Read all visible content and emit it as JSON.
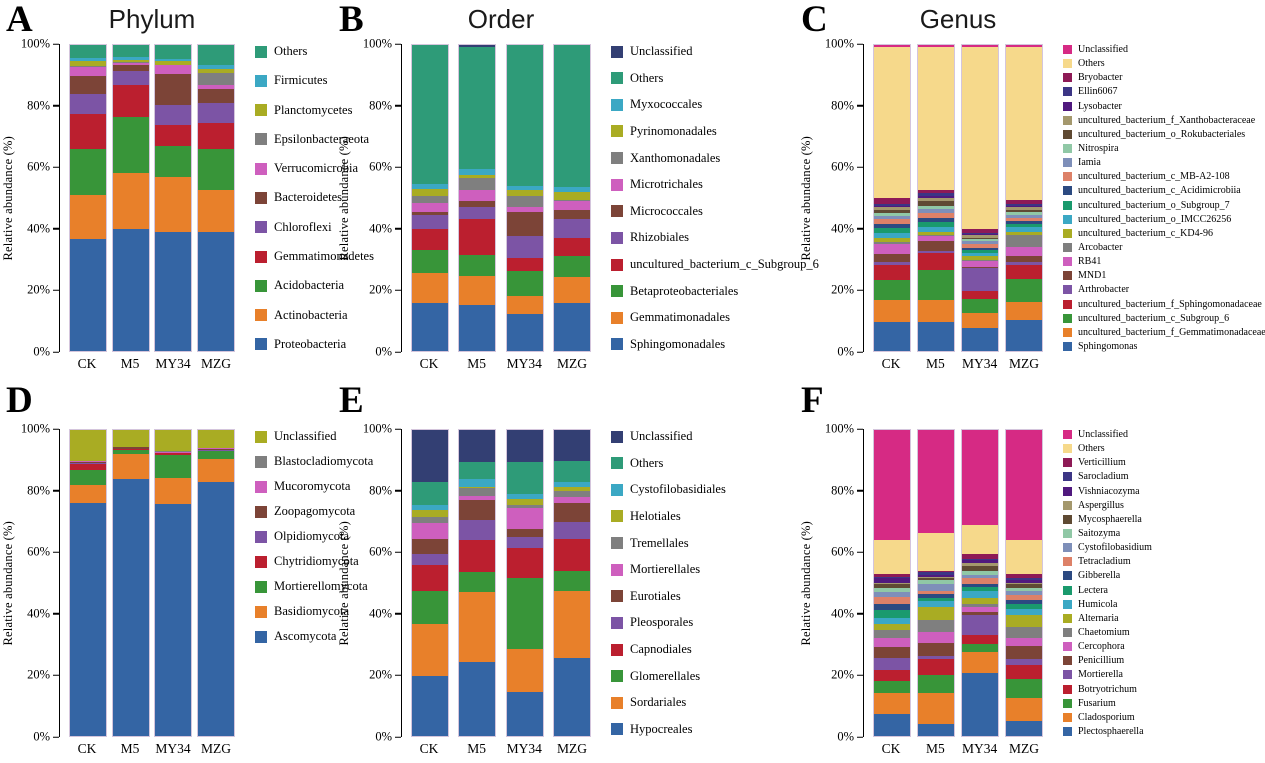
{
  "figure": {
    "background": "#ffffff",
    "ylabel": "Relative abundance (%)",
    "yticks": [
      "0%",
      "20%",
      "40%",
      "60%",
      "80%",
      "100%"
    ],
    "ytick_values": [
      0,
      20,
      40,
      60,
      80,
      100
    ],
    "samples": [
      "CK",
      "M5",
      "MY34",
      "MZG"
    ],
    "notes": "Six stacked-bar panels A-F; series listed legend top-to-bottom; bars stack with last series at bottom; values are relative abundance percent per sample [CK, M5, MY34, MZG]"
  },
  "chart_data": [
    {
      "type": "bar",
      "stacked": true,
      "panel_label": "A",
      "title": "Phylum",
      "xlabel": "",
      "ylabel": "Relative abundance (%)",
      "ylim": [
        0,
        100
      ],
      "grid": false,
      "legend_position": "right",
      "categories": [
        "CK",
        "M5",
        "MY34",
        "MZG"
      ],
      "series": [
        {
          "name": "Others",
          "color": "#2E9B78",
          "values": [
            4.4,
            4.0,
            4.5,
            6.5
          ]
        },
        {
          "name": "Firmicutes",
          "color": "#3BA8C4",
          "values": [
            0.9,
            0.9,
            0.7,
            1.5
          ]
        },
        {
          "name": "Planctomycetes",
          "color": "#A9AC23",
          "values": [
            1.6,
            0.8,
            1.2,
            1.0
          ]
        },
        {
          "name": "Epsilonbacteraeota",
          "color": "#7F7F7F",
          "values": [
            0.4,
            0.3,
            0.3,
            4.0
          ]
        },
        {
          "name": "Verrucomicrobia",
          "color": "#CE5FBE",
          "values": [
            2.7,
            0.7,
            2.8,
            1.5
          ]
        },
        {
          "name": "Bacteroidetes",
          "color": "#7C4437",
          "values": [
            6.0,
            1.8,
            10.0,
            4.5
          ]
        },
        {
          "name": "Chloroflexi",
          "color": "#7C54A5",
          "values": [
            6.5,
            4.5,
            6.5,
            6.5
          ]
        },
        {
          "name": "Gemmatimonadetes",
          "color": "#BB1F2F",
          "values": [
            11.5,
            10.5,
            7.0,
            8.5
          ]
        },
        {
          "name": "Acidobacteria",
          "color": "#389539",
          "values": [
            15.0,
            18.5,
            10.0,
            13.5
          ]
        },
        {
          "name": "Actinobacteria",
          "color": "#E8802A",
          "values": [
            14.5,
            18.0,
            18.0,
            13.5
          ]
        },
        {
          "name": "Proteobacteria",
          "color": "#3465A4",
          "values": [
            36.5,
            40.0,
            39.0,
            39.0
          ]
        }
      ]
    },
    {
      "type": "bar",
      "stacked": true,
      "panel_label": "B",
      "title": "Order",
      "xlabel": "",
      "ylabel": "Relative abundance (%)",
      "ylim": [
        0,
        100
      ],
      "grid": false,
      "legend_position": "right",
      "categories": [
        "CK",
        "M5",
        "MY34",
        "MZG"
      ],
      "series": [
        {
          "name": "Unclassified",
          "color": "#333F73",
          "values": [
            0.0,
            0.5,
            0.0,
            0.0
          ]
        },
        {
          "name": "Others",
          "color": "#2E9B78",
          "values": [
            45.5,
            40.0,
            46.0,
            46.5
          ]
        },
        {
          "name": "Myxococcales",
          "color": "#3BA8C4",
          "values": [
            1.5,
            2.0,
            1.5,
            1.5
          ]
        },
        {
          "name": "Pyrinomonadales",
          "color": "#A9AC23",
          "values": [
            2.5,
            1.0,
            2.0,
            2.5
          ]
        },
        {
          "name": "Xanthomonadales",
          "color": "#7F7F7F",
          "values": [
            2.0,
            4.0,
            3.5,
            0.5
          ]
        },
        {
          "name": "Microtrichales",
          "color": "#CE5FBE",
          "values": [
            3.0,
            3.5,
            1.5,
            3.0
          ]
        },
        {
          "name": "Micrococcales",
          "color": "#7C4437",
          "values": [
            1.0,
            2.0,
            8.0,
            3.0
          ]
        },
        {
          "name": "Rhizobiales",
          "color": "#7C54A5",
          "values": [
            4.5,
            4.0,
            7.0,
            6.0
          ]
        },
        {
          "name": "uncultured_bacterium_c_Subgroup_6",
          "color": "#BB1F2F",
          "values": [
            7.0,
            11.5,
            4.5,
            6.0
          ]
        },
        {
          "name": "Betaproteobacteriales",
          "color": "#389539",
          "values": [
            7.5,
            7.0,
            8.0,
            7.0
          ]
        },
        {
          "name": "Gemmatimonadales",
          "color": "#E8802A",
          "values": [
            10.0,
            9.5,
            6.0,
            8.5
          ]
        },
        {
          "name": "Sphingomonadales",
          "color": "#3465A4",
          "values": [
            15.5,
            15.0,
            12.0,
            15.5
          ]
        }
      ]
    },
    {
      "type": "bar",
      "stacked": true,
      "panel_label": "C",
      "title": "Genus",
      "xlabel": "",
      "ylabel": "Relative abundance (%)",
      "ylim": [
        0,
        100
      ],
      "grid": false,
      "legend_position": "right",
      "categories": [
        "CK",
        "M5",
        "MY34",
        "MZG"
      ],
      "series": [
        {
          "name": "Unclassified",
          "color": "#D62A84",
          "values": [
            0.5,
            0.5,
            0.5,
            0.5
          ]
        },
        {
          "name": "Others",
          "color": "#F6D98B",
          "values": [
            49.5,
            47.0,
            59.7,
            50.0
          ]
        },
        {
          "name": "Bryobacter",
          "color": "#8E1A56",
          "values": [
            2.0,
            1.0,
            1.3,
            1.5
          ]
        },
        {
          "name": "Ellin6067",
          "color": "#3C3585",
          "values": [
            0.5,
            1.0,
            0.3,
            0.5
          ]
        },
        {
          "name": "Lysobacter",
          "color": "#50197E",
          "values": [
            0.5,
            0.5,
            0.4,
            0.5
          ]
        },
        {
          "name": "uncultured_bacterium_f_Xanthobacteraceae",
          "color": "#A4986D",
          "values": [
            1.0,
            1.0,
            0.8,
            1.0
          ]
        },
        {
          "name": "uncultured_bacterium_o_Rokubacteriales",
          "color": "#5F4A33",
          "values": [
            1.0,
            1.5,
            0.5,
            0.7
          ]
        },
        {
          "name": "Nitrospira",
          "color": "#90C8A6",
          "values": [
            1.0,
            1.0,
            0.7,
            0.8
          ]
        },
        {
          "name": "Iamia",
          "color": "#7E8FB9",
          "values": [
            1.0,
            1.5,
            0.8,
            1.0
          ]
        },
        {
          "name": "uncultured_bacterium_c_MB-A2-108",
          "color": "#DD8168",
          "values": [
            1.5,
            1.5,
            1.3,
            1.0
          ]
        },
        {
          "name": "uncultured_bacterium_c_Acidimicrobiia",
          "color": "#2C4A81",
          "values": [
            1.5,
            1.5,
            0.7,
            1.0
          ]
        },
        {
          "name": "uncultured_bacterium_o_Subgroup_7",
          "color": "#1A9A6D",
          "values": [
            1.5,
            1.5,
            1.0,
            1.0
          ]
        },
        {
          "name": "uncultured_bacterium_o_IMCC26256",
          "color": "#3BA8C4",
          "values": [
            1.5,
            1.5,
            1.0,
            1.5
          ]
        },
        {
          "name": "uncultured_bacterium_c_KD4-96",
          "color": "#A9AC23",
          "values": [
            1.5,
            1.0,
            1.2,
            1.0
          ]
        },
        {
          "name": "Arcobacter",
          "color": "#7F7F7F",
          "values": [
            0.5,
            0.5,
            0.3,
            4.0
          ]
        },
        {
          "name": "RB41",
          "color": "#CE5FBE",
          "values": [
            3.5,
            1.5,
            2.0,
            3.0
          ]
        },
        {
          "name": "MND1",
          "color": "#7C4437",
          "values": [
            2.5,
            3.5,
            0.5,
            2.0
          ]
        },
        {
          "name": "Arthrobacter",
          "color": "#7C54A5",
          "values": [
            1.0,
            0.5,
            7.5,
            1.0
          ]
        },
        {
          "name": "uncultured_bacterium_f_Sphingomonadaceae",
          "color": "#BB1F2F",
          "values": [
            5.0,
            5.5,
            2.5,
            4.5
          ]
        },
        {
          "name": "uncultured_bacterium_c_Subgroup_6",
          "color": "#389539",
          "values": [
            6.5,
            10.0,
            4.5,
            7.5
          ]
        },
        {
          "name": "uncultured_bacterium_f_Gemmatimonadaceae",
          "color": "#E8802A",
          "values": [
            7.0,
            7.0,
            5.0,
            6.0
          ]
        },
        {
          "name": "Sphingomonas",
          "color": "#3465A4",
          "values": [
            9.5,
            9.5,
            7.5,
            10.0
          ]
        }
      ]
    },
    {
      "type": "bar",
      "stacked": true,
      "panel_label": "D",
      "title": "",
      "xlabel": "",
      "ylabel": "Relative abundance (%)",
      "ylim": [
        0,
        100
      ],
      "grid": false,
      "legend_position": "right",
      "categories": [
        "CK",
        "M5",
        "MY34",
        "MZG"
      ],
      "series": [
        {
          "name": "Unclassified",
          "color": "#A9AC23",
          "values": [
            10.0,
            5.4,
            7.0,
            5.9
          ]
        },
        {
          "name": "Blastocladiomycota",
          "color": "#7F7F7F",
          "values": [
            0.2,
            0.1,
            0.1,
            0.1
          ]
        },
        {
          "name": "Mucoromycota",
          "color": "#CE5FBE",
          "values": [
            0.3,
            0.2,
            0.3,
            0.2
          ]
        },
        {
          "name": "Zoopagomycota",
          "color": "#7C4437",
          "values": [
            0.3,
            0.5,
            0.1,
            0.5
          ]
        },
        {
          "name": "Olpidiomycota",
          "color": "#7C54A5",
          "values": [
            0.2,
            0.1,
            0.1,
            0.1
          ]
        },
        {
          "name": "Chytridiomycota",
          "color": "#BB1F2F",
          "values": [
            2.0,
            0.2,
            0.5,
            0.2
          ]
        },
        {
          "name": "Mortierellomycota",
          "color": "#389539",
          "values": [
            5.0,
            1.5,
            7.5,
            2.5
          ]
        },
        {
          "name": "Basidiomycota",
          "color": "#E8802A",
          "values": [
            6.0,
            8.0,
            8.5,
            7.5
          ]
        },
        {
          "name": "Ascomycota",
          "color": "#3465A4",
          "values": [
            76.0,
            84.0,
            76.0,
            83.5
          ]
        }
      ]
    },
    {
      "type": "bar",
      "stacked": true,
      "panel_label": "E",
      "title": "",
      "xlabel": "",
      "ylabel": "Relative abundance (%)",
      "ylim": [
        0,
        100
      ],
      "grid": false,
      "legend_position": "right",
      "categories": [
        "CK",
        "M5",
        "MY34",
        "MZG"
      ],
      "series": [
        {
          "name": "Unclassified",
          "color": "#333F73",
          "values": [
            17.0,
            10.5,
            10.5,
            10.0
          ]
        },
        {
          "name": "Others",
          "color": "#2E9B78",
          "values": [
            7.5,
            5.5,
            10.5,
            7.0
          ]
        },
        {
          "name": "Cystofilobasidiales",
          "color": "#3BA8C4",
          "values": [
            1.5,
            2.5,
            1.5,
            1.5
          ]
        },
        {
          "name": "Helotiales",
          "color": "#A9AC23",
          "values": [
            2.5,
            0.5,
            2.0,
            1.5
          ]
        },
        {
          "name": "Tremellales",
          "color": "#7F7F7F",
          "values": [
            2.0,
            2.5,
            1.0,
            2.0
          ]
        },
        {
          "name": "Mortierellales",
          "color": "#CE5FBE",
          "values": [
            5.0,
            1.5,
            7.0,
            2.0
          ]
        },
        {
          "name": "Eurotiales",
          "color": "#7C4437",
          "values": [
            5.0,
            6.5,
            2.5,
            6.0
          ]
        },
        {
          "name": "Pleosporales",
          "color": "#7C54A5",
          "values": [
            3.5,
            6.5,
            3.5,
            5.5
          ]
        },
        {
          "name": "Capnodiales",
          "color": "#BB1F2F",
          "values": [
            8.5,
            10.5,
            10.0,
            10.5
          ]
        },
        {
          "name": "Glomerellales",
          "color": "#389539",
          "values": [
            11.0,
            6.5,
            23.0,
            6.5
          ]
        },
        {
          "name": "Sordariales",
          "color": "#E8802A",
          "values": [
            17.0,
            23.0,
            14.0,
            22.0
          ]
        },
        {
          "name": "Hypocreales",
          "color": "#3465A4",
          "values": [
            19.5,
            24.0,
            14.5,
            25.5
          ]
        }
      ]
    },
    {
      "type": "bar",
      "stacked": true,
      "panel_label": "F",
      "title": "",
      "xlabel": "",
      "ylabel": "Relative abundance (%)",
      "ylim": [
        0,
        100
      ],
      "grid": false,
      "legend_position": "right",
      "categories": [
        "CK",
        "M5",
        "MY34",
        "MZG"
      ],
      "series": [
        {
          "name": "Unclassified",
          "color": "#D62A84",
          "values": [
            36.0,
            33.5,
            31.0,
            36.0
          ]
        },
        {
          "name": "Others",
          "color": "#F6D98B",
          "values": [
            11.0,
            12.5,
            9.5,
            11.0
          ]
        },
        {
          "name": "Verticillium",
          "color": "#8E1A56",
          "values": [
            1.0,
            0.5,
            1.5,
            1.5
          ]
        },
        {
          "name": "Sarocladium",
          "color": "#3C3585",
          "values": [
            0.5,
            1.0,
            0.5,
            0.5
          ]
        },
        {
          "name": "Vishniacozyma",
          "color": "#50197E",
          "values": [
            1.5,
            0.5,
            1.0,
            1.0
          ]
        },
        {
          "name": "Aspergillus",
          "color": "#A4986D",
          "values": [
            0.5,
            0.5,
            1.0,
            0.5
          ]
        },
        {
          "name": "Mycosphaerella",
          "color": "#5F4A33",
          "values": [
            1.0,
            0.5,
            1.5,
            1.0
          ]
        },
        {
          "name": "Saitozyma",
          "color": "#90C8A6",
          "values": [
            1.5,
            1.5,
            1.5,
            1.0
          ]
        },
        {
          "name": "Cystofilobasidium",
          "color": "#7E8FB9",
          "values": [
            1.5,
            2.0,
            1.0,
            1.5
          ]
        },
        {
          "name": "Tetracladium",
          "color": "#DD8168",
          "values": [
            2.5,
            1.0,
            2.0,
            1.5
          ]
        },
        {
          "name": "Gibberella",
          "color": "#2C4A81",
          "values": [
            2.0,
            1.5,
            1.0,
            1.5
          ]
        },
        {
          "name": "Lectera",
          "color": "#1A9A6D",
          "values": [
            2.5,
            1.0,
            1.0,
            1.5
          ]
        },
        {
          "name": "Humicola",
          "color": "#3BA8C4",
          "values": [
            2.0,
            2.0,
            2.5,
            2.0
          ]
        },
        {
          "name": "Alternaria",
          "color": "#A9AC23",
          "values": [
            2.0,
            4.0,
            2.0,
            4.0
          ]
        },
        {
          "name": "Chaetomium",
          "color": "#7F7F7F",
          "values": [
            2.5,
            4.0,
            1.0,
            3.5
          ]
        },
        {
          "name": "Cercophora",
          "color": "#CE5FBE",
          "values": [
            3.0,
            3.5,
            1.5,
            2.5
          ]
        },
        {
          "name": "Penicillium",
          "color": "#7C4437",
          "values": [
            3.5,
            4.5,
            1.0,
            4.5
          ]
        },
        {
          "name": "Mortierella",
          "color": "#7C54A5",
          "values": [
            4.0,
            1.0,
            6.5,
            2.0
          ]
        },
        {
          "name": "Botryotrichum",
          "color": "#BB1F2F",
          "values": [
            3.5,
            5.0,
            3.0,
            4.5
          ]
        },
        {
          "name": "Fusarium",
          "color": "#389539",
          "values": [
            4.0,
            6.0,
            2.5,
            6.0
          ]
        },
        {
          "name": "Cladosporium",
          "color": "#E8802A",
          "values": [
            7.0,
            10.0,
            7.0,
            7.5
          ]
        },
        {
          "name": "Plectosphaerella",
          "color": "#3465A4",
          "values": [
            7.0,
            4.0,
            20.5,
            5.0
          ]
        }
      ]
    }
  ]
}
